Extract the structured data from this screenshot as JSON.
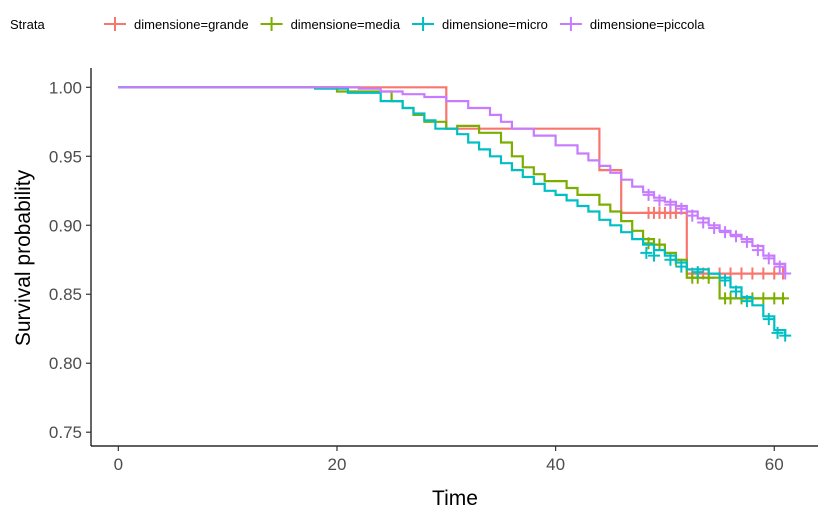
{
  "chart_data": {
    "type": "line",
    "subtype": "kaplan-meier step plot",
    "title": "",
    "xlabel": "Time",
    "ylabel": "Survival probability",
    "xlim": [
      -2.5,
      64
    ],
    "ylim": [
      0.74,
      1.014
    ],
    "x_ticks": [
      0,
      20,
      40,
      60
    ],
    "y_ticks": [
      0.75,
      0.8,
      0.85,
      0.9,
      0.95,
      1.0
    ],
    "x_tick_labels": [
      "0",
      "20",
      "40",
      "60"
    ],
    "y_tick_labels": [
      "0.75",
      "0.80",
      "0.85",
      "0.90",
      "0.95",
      "1.00"
    ],
    "grid": false,
    "legend_title": "Strata",
    "legend_position": "top",
    "series": [
      {
        "name": "dimensione=grande",
        "color": "#F8766D",
        "steps": [
          [
            0,
            1.0
          ],
          [
            30,
            0.97
          ],
          [
            44,
            0.94
          ],
          [
            46,
            0.909
          ],
          [
            52,
            0.865
          ],
          [
            61,
            0.865
          ]
        ],
        "censored": [
          [
            48.5,
            0.909
          ],
          [
            49,
            0.909
          ],
          [
            49.5,
            0.909
          ],
          [
            50,
            0.909
          ],
          [
            50.5,
            0.909
          ],
          [
            51,
            0.909
          ],
          [
            52.5,
            0.865
          ],
          [
            53,
            0.865
          ],
          [
            53.5,
            0.865
          ],
          [
            54,
            0.865
          ],
          [
            55,
            0.865
          ],
          [
            56,
            0.865
          ],
          [
            57,
            0.865
          ],
          [
            58,
            0.865
          ],
          [
            59,
            0.865
          ],
          [
            60,
            0.865
          ],
          [
            60.8,
            0.865
          ]
        ]
      },
      {
        "name": "dimensione=media",
        "color": "#7CAE00",
        "steps": [
          [
            0,
            1.0
          ],
          [
            20,
            0.997
          ],
          [
            25,
            0.99
          ],
          [
            26,
            0.985
          ],
          [
            27,
            0.98
          ],
          [
            28,
            0.975
          ],
          [
            30,
            0.97
          ],
          [
            31,
            0.972
          ],
          [
            33,
            0.967
          ],
          [
            35,
            0.96
          ],
          [
            36,
            0.95
          ],
          [
            37,
            0.942
          ],
          [
            38,
            0.937
          ],
          [
            39,
            0.932
          ],
          [
            41,
            0.927
          ],
          [
            42,
            0.922
          ],
          [
            44,
            0.915
          ],
          [
            45,
            0.91
          ],
          [
            46,
            0.903
          ],
          [
            47,
            0.896
          ],
          [
            48,
            0.89
          ],
          [
            49,
            0.886
          ],
          [
            50,
            0.88
          ],
          [
            51,
            0.875
          ],
          [
            52,
            0.862
          ],
          [
            55,
            0.847
          ],
          [
            61,
            0.847
          ]
        ],
        "censored": [
          [
            48.5,
            0.887
          ],
          [
            49.5,
            0.886
          ],
          [
            51,
            0.875
          ],
          [
            52.5,
            0.862
          ],
          [
            53,
            0.862
          ],
          [
            54,
            0.862
          ],
          [
            55.5,
            0.847
          ],
          [
            56,
            0.847
          ],
          [
            57,
            0.847
          ],
          [
            58,
            0.847
          ],
          [
            59,
            0.847
          ],
          [
            60,
            0.847
          ],
          [
            60.8,
            0.847
          ]
        ]
      },
      {
        "name": "dimensione=micro",
        "color": "#00BFC4",
        "steps": [
          [
            0,
            1.0
          ],
          [
            18,
            0.999
          ],
          [
            21,
            0.996
          ],
          [
            24,
            0.99
          ],
          [
            26,
            0.985
          ],
          [
            27,
            0.981
          ],
          [
            28,
            0.976
          ],
          [
            29,
            0.97
          ],
          [
            31,
            0.966
          ],
          [
            32,
            0.96
          ],
          [
            33,
            0.955
          ],
          [
            34,
            0.95
          ],
          [
            35,
            0.945
          ],
          [
            36,
            0.94
          ],
          [
            37,
            0.935
          ],
          [
            38,
            0.93
          ],
          [
            39,
            0.925
          ],
          [
            40,
            0.922
          ],
          [
            41,
            0.918
          ],
          [
            42,
            0.914
          ],
          [
            43,
            0.91
          ],
          [
            44,
            0.904
          ],
          [
            45,
            0.9
          ],
          [
            46,
            0.895
          ],
          [
            47,
            0.89
          ],
          [
            48,
            0.886
          ],
          [
            49,
            0.882
          ],
          [
            50,
            0.878
          ],
          [
            51,
            0.873
          ],
          [
            52,
            0.868
          ],
          [
            54,
            0.865
          ],
          [
            55,
            0.862
          ],
          [
            56,
            0.855
          ],
          [
            57,
            0.848
          ],
          [
            58,
            0.842
          ],
          [
            59,
            0.834
          ],
          [
            60,
            0.824
          ],
          [
            61,
            0.82
          ]
        ],
        "censored": [
          [
            48.3,
            0.88
          ],
          [
            49,
            0.878
          ],
          [
            50.5,
            0.875
          ],
          [
            51.5,
            0.87
          ],
          [
            53,
            0.866
          ],
          [
            55.5,
            0.86
          ],
          [
            56.5,
            0.852
          ],
          [
            57.5,
            0.845
          ],
          [
            59.5,
            0.832
          ],
          [
            60.3,
            0.822
          ],
          [
            61,
            0.82
          ]
        ]
      },
      {
        "name": "dimensione=piccola",
        "color": "#C77CFF",
        "steps": [
          [
            0,
            1.0
          ],
          [
            22,
            0.999
          ],
          [
            24,
            0.997
          ],
          [
            26,
            0.995
          ],
          [
            28,
            0.993
          ],
          [
            30,
            0.99
          ],
          [
            32,
            0.985
          ],
          [
            34,
            0.98
          ],
          [
            35,
            0.975
          ],
          [
            36,
            0.97
          ],
          [
            38,
            0.965
          ],
          [
            40,
            0.958
          ],
          [
            42,
            0.952
          ],
          [
            43,
            0.947
          ],
          [
            44,
            0.943
          ],
          [
            45,
            0.938
          ],
          [
            46,
            0.933
          ],
          [
            47,
            0.928
          ],
          [
            48,
            0.924
          ],
          [
            49,
            0.92
          ],
          [
            50,
            0.917
          ],
          [
            51,
            0.914
          ],
          [
            52,
            0.91
          ],
          [
            53,
            0.905
          ],
          [
            54,
            0.9
          ],
          [
            55,
            0.896
          ],
          [
            56,
            0.893
          ],
          [
            57,
            0.89
          ],
          [
            58,
            0.885
          ],
          [
            59,
            0.878
          ],
          [
            60,
            0.872
          ],
          [
            61,
            0.865
          ]
        ],
        "censored": [
          [
            48.5,
            0.922
          ],
          [
            49.5,
            0.918
          ],
          [
            50.5,
            0.915
          ],
          [
            51.5,
            0.912
          ],
          [
            52.5,
            0.907
          ],
          [
            53.5,
            0.902
          ],
          [
            54.5,
            0.898
          ],
          [
            55.5,
            0.895
          ],
          [
            56.5,
            0.892
          ],
          [
            57.5,
            0.888
          ],
          [
            58.5,
            0.882
          ],
          [
            59.5,
            0.876
          ],
          [
            60.5,
            0.87
          ],
          [
            61,
            0.865
          ]
        ]
      }
    ]
  }
}
